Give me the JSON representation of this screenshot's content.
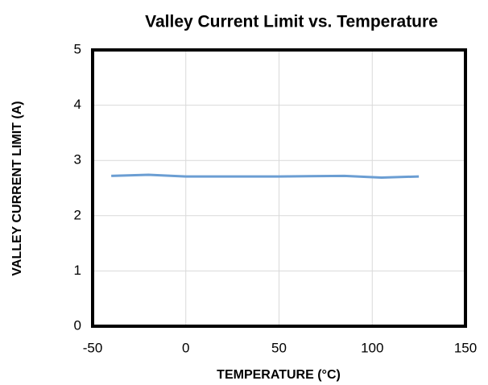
{
  "chart_data": {
    "type": "line",
    "title": "Valley Current Limit vs. Temperature",
    "x_label": "TEMPERATURE (°C)",
    "y_label": "VALLEY CURRENT LIMIT (A)",
    "x": [
      -40,
      -20,
      0,
      25,
      50,
      85,
      105,
      125
    ],
    "series": [
      {
        "name": "Valley Current Limit",
        "color": "#6b9ed3",
        "values": [
          2.72,
          2.74,
          2.71,
          2.71,
          2.71,
          2.72,
          2.69,
          2.71
        ]
      }
    ],
    "xlim": [
      -50,
      150
    ],
    "xticks": [
      -50,
      0,
      50,
      100,
      150
    ],
    "ylim": [
      0,
      5
    ],
    "yticks": [
      0,
      1,
      2,
      3,
      4,
      5
    ],
    "grid": true
  }
}
